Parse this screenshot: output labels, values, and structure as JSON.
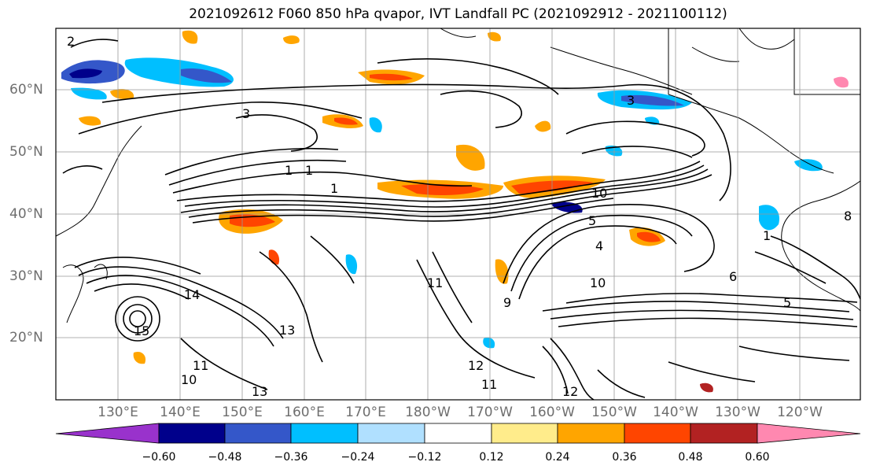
{
  "title": "2021092612 F060 850 hPa qvapor, IVT Landfall PC (2021092912 - 2021100112)",
  "lat_labels": [
    "60°N",
    "50°N",
    "40°N",
    "30°N",
    "20°N"
  ],
  "lon_labels": [
    "130°E",
    "140°E",
    "150°E",
    "160°E",
    "170°E",
    "180°W",
    "170°W",
    "160°W",
    "150°W",
    "140°W",
    "130°W",
    "120°W"
  ],
  "colorbar": {
    "colors": [
      "#9932cc",
      "#00008b",
      "#3457c9",
      "#00bfff",
      "#b0e0ff",
      "#ffffff",
      "#ffec8b",
      "#ffa500",
      "#ff4500",
      "#b22222",
      "#ff88b0"
    ],
    "ticks": [
      "−0.60",
      "−0.48",
      "−0.36",
      "−0.24",
      "−0.12",
      "0.12",
      "0.24",
      "0.36",
      "0.48",
      "0.60"
    ]
  },
  "contour_labels": [
    "2",
    "3",
    "1",
    "1",
    "1",
    "3",
    "10",
    "5",
    "4",
    "11",
    "9",
    "12",
    "11",
    "12",
    "13",
    "13",
    "14",
    "10",
    "11",
    "10",
    "6",
    "5",
    "8",
    "1",
    "15"
  ]
}
